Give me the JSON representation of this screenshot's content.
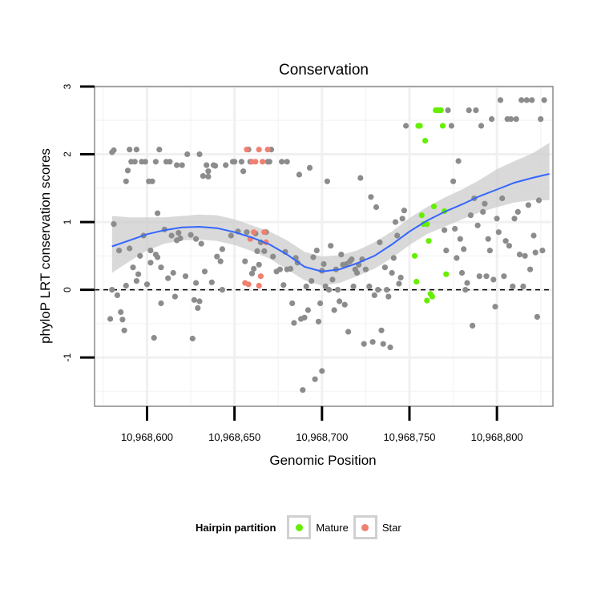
{
  "chart_data": {
    "type": "scatter",
    "title": "Conservation",
    "xlabel": "Genomic Position",
    "ylabel": "phyloP LRT conservation scores",
    "xlim": [
      10968570,
      10968832
    ],
    "ylim": [
      -1.72,
      3.0
    ],
    "x_ticks": [
      10968600,
      10968650,
      10968700,
      10968750,
      10968800
    ],
    "x_tick_labels": [
      "10,968,600",
      "10,968,650",
      "10,968,700",
      "10,968,750",
      "10,968,800"
    ],
    "y_ticks": [
      -1,
      0,
      1,
      2,
      3
    ],
    "y_tick_labels": [
      "-1",
      "0",
      "1",
      "2",
      "3"
    ],
    "reference_line": {
      "y": 0,
      "style": "dashed"
    },
    "grid": true,
    "legend": {
      "title": "Hairpin partition",
      "position": "bottom",
      "entries": [
        {
          "label": "Mature",
          "color": "#66ee00"
        },
        {
          "label": "Star",
          "color": "#f08070"
        }
      ]
    },
    "colors": {
      "other": "#8c8c8c",
      "Mature": "#66ee00",
      "Star": "#f08070",
      "smooth": "#3366ff",
      "band": "#cccccc"
    },
    "series": [
      {
        "group": "other",
        "points": [
          [
            10968579,
            -0.43
          ],
          [
            10968580,
            2.03
          ],
          [
            10968580,
            0.0
          ],
          [
            10968581,
            2.06
          ],
          [
            10968581,
            0.97
          ],
          [
            10968583,
            -0.08
          ],
          [
            10968584,
            0.58
          ],
          [
            10968585,
            -0.33
          ],
          [
            10968586,
            -0.44
          ],
          [
            10968587,
            -0.6
          ],
          [
            10968588,
            1.6
          ],
          [
            10968588,
            0.06
          ],
          [
            10968589,
            1.76
          ],
          [
            10968590,
            2.07
          ],
          [
            10968590,
            0.61
          ],
          [
            10968591,
            1.89
          ],
          [
            10968592,
            0.33
          ],
          [
            10968593,
            1.89
          ],
          [
            10968594,
            2.07
          ],
          [
            10968594,
            0.13
          ],
          [
            10968595,
            0.23
          ],
          [
            10968596,
            0.5
          ],
          [
            10968597,
            1.89
          ],
          [
            10968598,
            0.8
          ],
          [
            10968599,
            1.89
          ],
          [
            10968600,
            0.08
          ],
          [
            10968601,
            1.6
          ],
          [
            10968602,
            0.4
          ],
          [
            10968602,
            0.58
          ],
          [
            10968603,
            1.6
          ],
          [
            10968604,
            -0.71
          ],
          [
            10968605,
            1.89
          ],
          [
            10968605,
            0.52
          ],
          [
            10968606,
            1.13
          ],
          [
            10968606,
            0.48
          ],
          [
            10968607,
            2.07
          ],
          [
            10968608,
            0.33
          ],
          [
            10968608,
            -0.2
          ],
          [
            10968610,
            0.89
          ],
          [
            10968611,
            1.89
          ],
          [
            10968612,
            0.17
          ],
          [
            10968613,
            1.89
          ],
          [
            10968614,
            0.8
          ],
          [
            10968615,
            0.25
          ],
          [
            10968616,
            -0.1
          ],
          [
            10968617,
            1.84
          ],
          [
            10968617,
            0.73
          ],
          [
            10968618,
            0.84
          ],
          [
            10968619,
            0.76
          ],
          [
            10968620,
            1.84
          ],
          [
            10968622,
            0.2
          ],
          [
            10968623,
            2.0
          ],
          [
            10968625,
            0.81
          ],
          [
            10968626,
            -0.72
          ],
          [
            10968627,
            -0.15
          ],
          [
            10968628,
            0.1
          ],
          [
            10968628,
            0.75
          ],
          [
            10968629,
            -0.27
          ],
          [
            10968630,
            2.0
          ],
          [
            10968630,
            -0.17
          ],
          [
            10968631,
            0.68
          ],
          [
            10968632,
            1.68
          ],
          [
            10968633,
            0.27
          ],
          [
            10968634,
            1.84
          ],
          [
            10968635,
            1.75
          ],
          [
            10968635,
            1.67
          ],
          [
            10968637,
            0.11
          ],
          [
            10968638,
            1.84
          ],
          [
            10968639,
            1.83
          ],
          [
            10968640,
            0.49
          ],
          [
            10968642,
            0.42
          ],
          [
            10968643,
            0.6
          ],
          [
            10968643,
            0.0
          ],
          [
            10968645,
            1.84
          ],
          [
            10968648,
            0.8
          ],
          [
            10968649,
            1.89
          ],
          [
            10968650,
            1.89
          ],
          [
            10968652,
            0.86
          ],
          [
            10968654,
            1.89
          ],
          [
            10968655,
            1.75
          ],
          [
            10968656,
            0.42
          ],
          [
            10968657,
            0.85
          ],
          [
            10968658,
            2.07
          ],
          [
            10968659,
            1.89
          ],
          [
            10968660,
            0.24
          ],
          [
            10968661,
            0.31
          ],
          [
            10968662,
            0.83
          ],
          [
            10968663,
            0.57
          ],
          [
            10968664,
            0.37
          ],
          [
            10968665,
            0.7
          ],
          [
            10968667,
            0.57
          ],
          [
            10968668,
            0.85
          ],
          [
            10968669,
            1.89
          ],
          [
            10968670,
            1.89
          ],
          [
            10968671,
            2.07
          ],
          [
            10968672,
            0.49
          ],
          [
            10968674,
            0.27
          ],
          [
            10968676,
            0.3
          ],
          [
            10968677,
            1.89
          ],
          [
            10968678,
            0.07
          ],
          [
            10968679,
            0.56
          ],
          [
            10968680,
            0.3
          ],
          [
            10968680,
            1.89
          ],
          [
            10968682,
            0.31
          ],
          [
            10968683,
            -0.2
          ],
          [
            10968684,
            -0.49
          ],
          [
            10968685,
            0.47
          ],
          [
            10968686,
            0.4
          ],
          [
            10968687,
            1.7
          ],
          [
            10968688,
            -0.43
          ],
          [
            10968689,
            -1.48
          ],
          [
            10968690,
            -0.41
          ],
          [
            10968691,
            0.05
          ],
          [
            10968692,
            -0.3
          ],
          [
            10968693,
            1.8
          ],
          [
            10968694,
            0.13
          ],
          [
            10968695,
            0.48
          ],
          [
            10968696,
            -1.32
          ],
          [
            10968697,
            0.58
          ],
          [
            10968698,
            -0.47
          ],
          [
            10968699,
            -0.2
          ],
          [
            10968700,
            -1.2
          ],
          [
            10968700,
            0.28
          ],
          [
            10968701,
            0.38
          ],
          [
            10968702,
            0.05
          ],
          [
            10968703,
            1.6
          ],
          [
            10968704,
            0.0
          ],
          [
            10968705,
            0.65
          ],
          [
            10968706,
            0.15
          ],
          [
            10968707,
            -0.3
          ],
          [
            10968708,
            0.3
          ],
          [
            10968709,
            0.0
          ],
          [
            10968710,
            -0.17
          ],
          [
            10968711,
            0.52
          ],
          [
            10968712,
            0.37
          ],
          [
            10968713,
            -0.22
          ],
          [
            10968714,
            0.38
          ],
          [
            10968715,
            -0.62
          ],
          [
            10968716,
            0.42
          ],
          [
            10968717,
            0.45
          ],
          [
            10968718,
            0.05
          ],
          [
            10968719,
            0.3
          ],
          [
            10968720,
            0.25
          ],
          [
            10968721,
            0.37
          ],
          [
            10968722,
            1.65
          ],
          [
            10968723,
            0.45
          ],
          [
            10968724,
            -0.8
          ],
          [
            10968725,
            0.3
          ],
          [
            10968727,
            0.05
          ],
          [
            10968728,
            1.37
          ],
          [
            10968729,
            -0.77
          ],
          [
            10968730,
            -0.08
          ],
          [
            10968731,
            1.22
          ],
          [
            10968732,
            0.0
          ],
          [
            10968733,
            0.7
          ],
          [
            10968734,
            -0.6
          ],
          [
            10968735,
            -0.8
          ],
          [
            10968736,
            0.33
          ],
          [
            10968737,
            0.0
          ],
          [
            10968738,
            -0.1
          ],
          [
            10968739,
            -0.85
          ],
          [
            10968740,
            0.25
          ],
          [
            10968741,
            0.47
          ],
          [
            10968742,
            1.0
          ],
          [
            10968743,
            0.8
          ],
          [
            10968744,
            0.09
          ],
          [
            10968745,
            0.18
          ],
          [
            10968746,
            1.05
          ],
          [
            10968747,
            1.17
          ],
          [
            10968748,
            2.42
          ],
          [
            10968770,
            0.88
          ],
          [
            10968771,
            0.58
          ],
          [
            10968772,
            2.65
          ],
          [
            10968774,
            2.42
          ],
          [
            10968775,
            1.6
          ],
          [
            10968776,
            0.9
          ],
          [
            10968777,
            0.47
          ],
          [
            10968778,
            1.9
          ],
          [
            10968779,
            0.75
          ],
          [
            10968780,
            0.25
          ],
          [
            10968781,
            0.6
          ],
          [
            10968782,
            0.0
          ],
          [
            10968783,
            0.1
          ],
          [
            10968784,
            2.65
          ],
          [
            10968785,
            1.1
          ],
          [
            10968786,
            -0.53
          ],
          [
            10968787,
            1.35
          ],
          [
            10968788,
            2.65
          ],
          [
            10968789,
            0.95
          ],
          [
            10968790,
            0.2
          ],
          [
            10968791,
            2.42
          ],
          [
            10968792,
            1.15
          ],
          [
            10968793,
            1.27
          ],
          [
            10968794,
            0.2
          ],
          [
            10968795,
            0.75
          ],
          [
            10968796,
            0.58
          ],
          [
            10968797,
            2.52
          ],
          [
            10968798,
            0.15
          ],
          [
            10968799,
            -0.25
          ],
          [
            10968800,
            1.05
          ],
          [
            10968801,
            0.85
          ],
          [
            10968802,
            2.8
          ],
          [
            10968803,
            1.35
          ],
          [
            10968804,
            0.2
          ],
          [
            10968805,
            0.72
          ],
          [
            10968806,
            2.52
          ],
          [
            10968807,
            0.65
          ],
          [
            10968808,
            2.52
          ],
          [
            10968809,
            0.05
          ],
          [
            10968810,
            1.05
          ],
          [
            10968811,
            2.52
          ],
          [
            10968812,
            1.15
          ],
          [
            10968813,
            0.52
          ],
          [
            10968814,
            2.8
          ],
          [
            10968815,
            0.05
          ],
          [
            10968816,
            0.5
          ],
          [
            10968817,
            2.8
          ],
          [
            10968818,
            1.25
          ],
          [
            10968819,
            0.3
          ],
          [
            10968820,
            2.8
          ],
          [
            10968821,
            0.8
          ],
          [
            10968822,
            0.55
          ],
          [
            10968823,
            -0.4
          ],
          [
            10968824,
            1.32
          ],
          [
            10968825,
            2.52
          ],
          [
            10968826,
            0.58
          ],
          [
            10968827,
            2.8
          ]
        ]
      },
      {
        "group": "Mature",
        "points": [
          [
            10968753,
            0.5
          ],
          [
            10968754,
            0.12
          ],
          [
            10968755,
            2.42
          ],
          [
            10968756,
            2.42
          ],
          [
            10968757,
            1.1
          ],
          [
            10968758,
            0.97
          ],
          [
            10968759,
            2.2
          ],
          [
            10968760,
            -0.16
          ],
          [
            10968760,
            0.97
          ],
          [
            10968761,
            0.72
          ],
          [
            10968762,
            -0.06
          ],
          [
            10968763,
            -0.1
          ],
          [
            10968764,
            1.23
          ],
          [
            10968765,
            2.65
          ],
          [
            10968766,
            2.65
          ],
          [
            10968767,
            2.65
          ],
          [
            10968768,
            2.65
          ],
          [
            10968769,
            2.42
          ],
          [
            10968770,
            1.16
          ],
          [
            10968771,
            0.23
          ]
        ]
      },
      {
        "group": "Star",
        "points": [
          [
            10968656,
            0.1
          ],
          [
            10968657,
            2.07
          ],
          [
            10968658,
            0.08
          ],
          [
            10968659,
            0.75
          ],
          [
            10968660,
            1.89
          ],
          [
            10968661,
            0.85
          ],
          [
            10968662,
            1.89
          ],
          [
            10968664,
            2.07
          ],
          [
            10968664,
            0.06
          ],
          [
            10968665,
            0.2
          ],
          [
            10968666,
            1.89
          ],
          [
            10968667,
            0.85
          ],
          [
            10968668,
            0.7
          ],
          [
            10968669,
            2.07
          ]
        ]
      }
    ],
    "smooth": {
      "x": [
        10968580,
        10968590,
        10968600,
        10968610,
        10968620,
        10968630,
        10968640,
        10968650,
        10968660,
        10968670,
        10968680,
        10968690,
        10968700,
        10968710,
        10968720,
        10968730,
        10968740,
        10968750,
        10968760,
        10968770,
        10968780,
        10968790,
        10968800,
        10968810,
        10968820,
        10968830
      ],
      "y": [
        0.64,
        0.73,
        0.82,
        0.88,
        0.92,
        0.93,
        0.91,
        0.85,
        0.77,
        0.67,
        0.52,
        0.34,
        0.27,
        0.3,
        0.39,
        0.5,
        0.67,
        0.86,
        1.02,
        1.15,
        1.26,
        1.38,
        1.48,
        1.58,
        1.65,
        1.71
      ],
      "lower": [
        0.25,
        0.42,
        0.58,
        0.68,
        0.73,
        0.74,
        0.72,
        0.66,
        0.57,
        0.46,
        0.3,
        0.14,
        0.06,
        0.1,
        0.2,
        0.31,
        0.47,
        0.66,
        0.82,
        0.93,
        1.04,
        1.14,
        1.22,
        1.29,
        1.32,
        1.32
      ],
      "upper": [
        1.09,
        1.07,
        1.07,
        1.07,
        1.09,
        1.11,
        1.1,
        1.04,
        0.95,
        0.86,
        0.73,
        0.56,
        0.49,
        0.51,
        0.58,
        0.7,
        0.86,
        1.06,
        1.22,
        1.36,
        1.48,
        1.62,
        1.78,
        1.9,
        2.01,
        2.17
      ]
    }
  }
}
